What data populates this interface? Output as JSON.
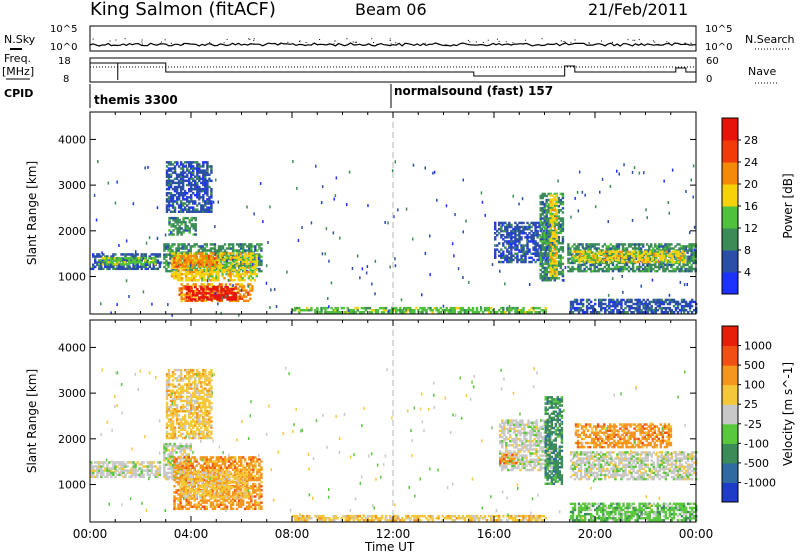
{
  "header": {
    "station": "King Salmon (fitACF)",
    "beam": "Beam 06",
    "date": "21/Feb/2011"
  },
  "status_panel": {
    "left_label_nsky": "N.Sky",
    "left_label_freq": "Freq.",
    "left_label_freq_unit": "[MHz]",
    "left_label_cpid": "CPID",
    "right_label_nsearch": "N.Search",
    "right_label_nave": "Nave",
    "noise_ticks_left": [
      "10^5",
      "10^0"
    ],
    "noise_ticks_right": [
      "10^5",
      "10^0"
    ],
    "freq_ticks_left": [
      "18",
      "8"
    ],
    "nave_ticks_right": [
      "60",
      "0"
    ],
    "cpid_segments": [
      {
        "label": "themis 3300",
        "start_hour": 0
      },
      {
        "label": "normalsound (fast) 157",
        "start_hour": 12
      }
    ]
  },
  "colors": {
    "power_scale": [
      "#1e32ff",
      "#2b4ea8",
      "#3c8c5a",
      "#4fc13c",
      "#f5d20a",
      "#f58a0a",
      "#f03c0a",
      "#e6140a"
    ],
    "velocity_scale": [
      "#1e3cc8",
      "#2f6aa0",
      "#3c8c5a",
      "#5ac83c",
      "#c8c8c8",
      "#f5c83c",
      "#f5961e",
      "#f05014",
      "#e61e0a"
    ]
  },
  "chart_data": [
    {
      "type": "heatmap",
      "name": "power",
      "xlabel": "Time UT",
      "ylabel": "Slant Range [km]",
      "colorbar_label": "Power [dB]",
      "x_ticks": [
        "00:00",
        "04:00",
        "08:00",
        "12:00",
        "16:00",
        "20:00",
        "00:00"
      ],
      "xlim_hours": [
        0,
        24
      ],
      "ylim_km": [
        180,
        4600
      ],
      "y_ticks": [
        1000,
        2000,
        3000,
        4000
      ],
      "colorbar_ticks": [
        4,
        8,
        12,
        16,
        20,
        24,
        28
      ],
      "colorbar_range": [
        0,
        32
      ],
      "regions": [
        {
          "t0": 0.0,
          "t1": 2.8,
          "r0": 1150,
          "r1": 1500,
          "level": 1
        },
        {
          "t0": 0.3,
          "t1": 2.6,
          "r0": 1250,
          "r1": 1400,
          "level": 3
        },
        {
          "t0": 2.9,
          "t1": 6.8,
          "r0": 1100,
          "r1": 1700,
          "level": 2
        },
        {
          "t0": 3.2,
          "t1": 6.6,
          "r0": 900,
          "r1": 1500,
          "level": 4
        },
        {
          "t0": 3.3,
          "t1": 5.0,
          "r0": 1200,
          "r1": 1450,
          "level": 5
        },
        {
          "t0": 3.5,
          "t1": 6.4,
          "r0": 450,
          "r1": 850,
          "level": 5
        },
        {
          "t0": 3.8,
          "t1": 5.8,
          "r0": 480,
          "r1": 760,
          "level": 7
        },
        {
          "t0": 3.1,
          "t1": 4.2,
          "r0": 1900,
          "r1": 2300,
          "level": 2
        },
        {
          "t0": 3.0,
          "t1": 4.8,
          "r0": 2400,
          "r1": 3500,
          "level": 1
        },
        {
          "t0": 16.0,
          "t1": 18.2,
          "r0": 1300,
          "r1": 2200,
          "level": 1
        },
        {
          "t0": 17.8,
          "t1": 18.7,
          "r0": 900,
          "r1": 2800,
          "level": 2
        },
        {
          "t0": 18.2,
          "t1": 18.5,
          "r0": 1000,
          "r1": 2800,
          "level": 4
        },
        {
          "t0": 18.9,
          "t1": 24.0,
          "r0": 1100,
          "r1": 1700,
          "level": 2
        },
        {
          "t0": 19.1,
          "t1": 23.5,
          "r0": 1300,
          "r1": 1550,
          "level": 4
        },
        {
          "t0": 19.0,
          "t1": 24.0,
          "r0": 200,
          "r1": 500,
          "level": 1
        },
        {
          "t0": 8.0,
          "t1": 18.0,
          "r0": 200,
          "r1": 320,
          "level": 3
        }
      ]
    },
    {
      "type": "heatmap",
      "name": "velocity",
      "xlabel": "Time UT",
      "ylabel": "Slant Range [km]",
      "colorbar_label": "Velocity [m s^-1]",
      "x_ticks": [
        "00:00",
        "04:00",
        "08:00",
        "12:00",
        "16:00",
        "20:00",
        "00:00"
      ],
      "xlim_hours": [
        0,
        24
      ],
      "ylim_km": [
        180,
        4600
      ],
      "y_ticks": [
        1000,
        2000,
        3000,
        4000
      ],
      "colorbar_ticks": [
        "1000",
        "500",
        "100",
        "25",
        "-25",
        "-100",
        "-500",
        "-1000"
      ],
      "regions": [
        {
          "t0": 0.0,
          "t1": 2.8,
          "r0": 1150,
          "r1": 1500,
          "level": 4
        },
        {
          "t0": 2.9,
          "t1": 4.0,
          "r0": 1100,
          "r1": 1900,
          "level": 4
        },
        {
          "t0": 3.3,
          "t1": 6.8,
          "r0": 450,
          "r1": 1600,
          "level": 6
        },
        {
          "t0": 3.6,
          "t1": 6.2,
          "r0": 700,
          "r1": 1300,
          "level": 5
        },
        {
          "t0": 3.0,
          "t1": 4.8,
          "r0": 2000,
          "r1": 3500,
          "level": 5
        },
        {
          "t0": 16.2,
          "t1": 18.2,
          "r0": 1300,
          "r1": 2400,
          "level": 4
        },
        {
          "t0": 18.0,
          "t1": 18.7,
          "r0": 1000,
          "r1": 2900,
          "level": 2
        },
        {
          "t0": 19.0,
          "t1": 24.0,
          "r0": 1100,
          "r1": 1700,
          "level": 4
        },
        {
          "t0": 19.2,
          "t1": 23.0,
          "r0": 1800,
          "r1": 2300,
          "level": 6
        },
        {
          "t0": 19.0,
          "t1": 24.0,
          "r0": 200,
          "r1": 600,
          "level": 3
        },
        {
          "t0": 8.0,
          "t1": 18.0,
          "r0": 200,
          "r1": 320,
          "level": 5
        },
        {
          "t0": 16.2,
          "t1": 16.9,
          "r0": 1450,
          "r1": 1650,
          "level": 6
        }
      ]
    }
  ]
}
